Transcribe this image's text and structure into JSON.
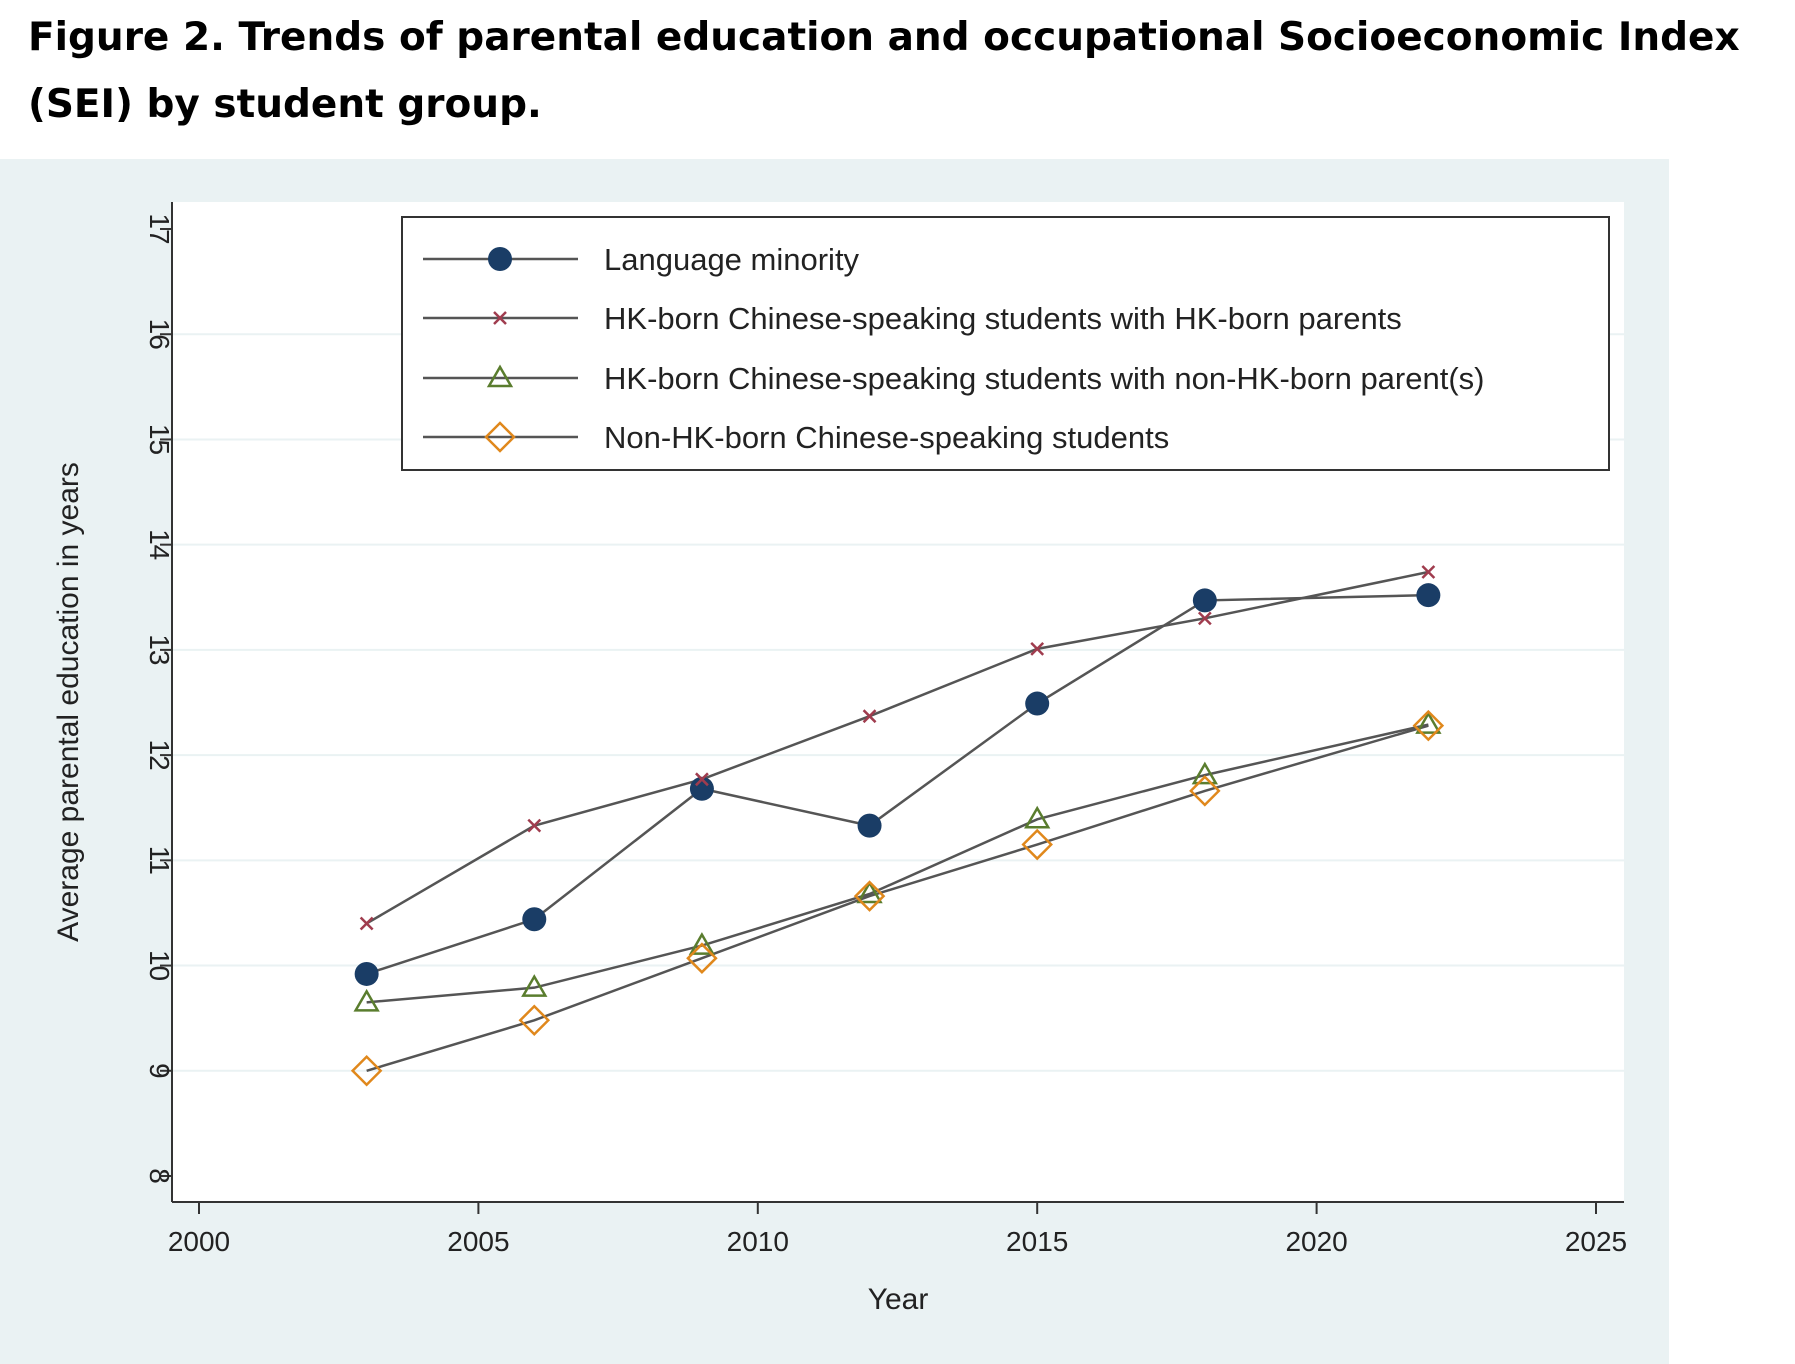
{
  "figure": {
    "caption": "Figure 2. Trends of parental education and occupational Socioeconomic Index (SEI) by student group."
  },
  "chart_data": {
    "type": "line",
    "xlabel": "Year",
    "ylabel": "Average parental education in years",
    "xlim": [
      2000,
      2025
    ],
    "ylim": [
      8,
      17
    ],
    "x_ticks": [
      "2000",
      "2005",
      "2010",
      "2015",
      "2020",
      "2025"
    ],
    "y_ticks": [
      "8",
      "9",
      "10",
      "11",
      "12",
      "13",
      "14",
      "15",
      "16",
      "17"
    ],
    "grid": true,
    "legend_position": "top",
    "x": [
      2003,
      2006,
      2009,
      2012,
      2015,
      2018,
      2022
    ],
    "series": [
      {
        "name": "Language minority",
        "marker": "filled-circle",
        "color": "#1a3d66",
        "values": [
          9.92,
          10.44,
          11.68,
          11.33,
          12.49,
          13.47,
          13.52
        ]
      },
      {
        "name": "HK-born Chinese-speaking students with HK-born parents",
        "marker": "x",
        "color": "#a03c4e",
        "values": [
          10.4,
          11.33,
          11.77,
          12.37,
          13.01,
          13.3,
          13.74
        ]
      },
      {
        "name": "HK-born Chinese-speaking students with non-HK-born parent(s)",
        "marker": "hollow-triangle",
        "color": "#5a7d2e",
        "values": [
          9.65,
          9.79,
          10.19,
          10.68,
          11.39,
          11.81,
          12.29
        ]
      },
      {
        "name": "Non-HK-born Chinese-speaking students",
        "marker": "hollow-diamond",
        "color": "#e0881c",
        "values": [
          9.0,
          9.48,
          10.07,
          10.66,
          11.15,
          11.66,
          12.28
        ]
      }
    ],
    "line_color": "#555555",
    "plot_background": "#ffffff",
    "outer_background": "#eaf2f3",
    "grid_color": "#eaf2f3"
  }
}
